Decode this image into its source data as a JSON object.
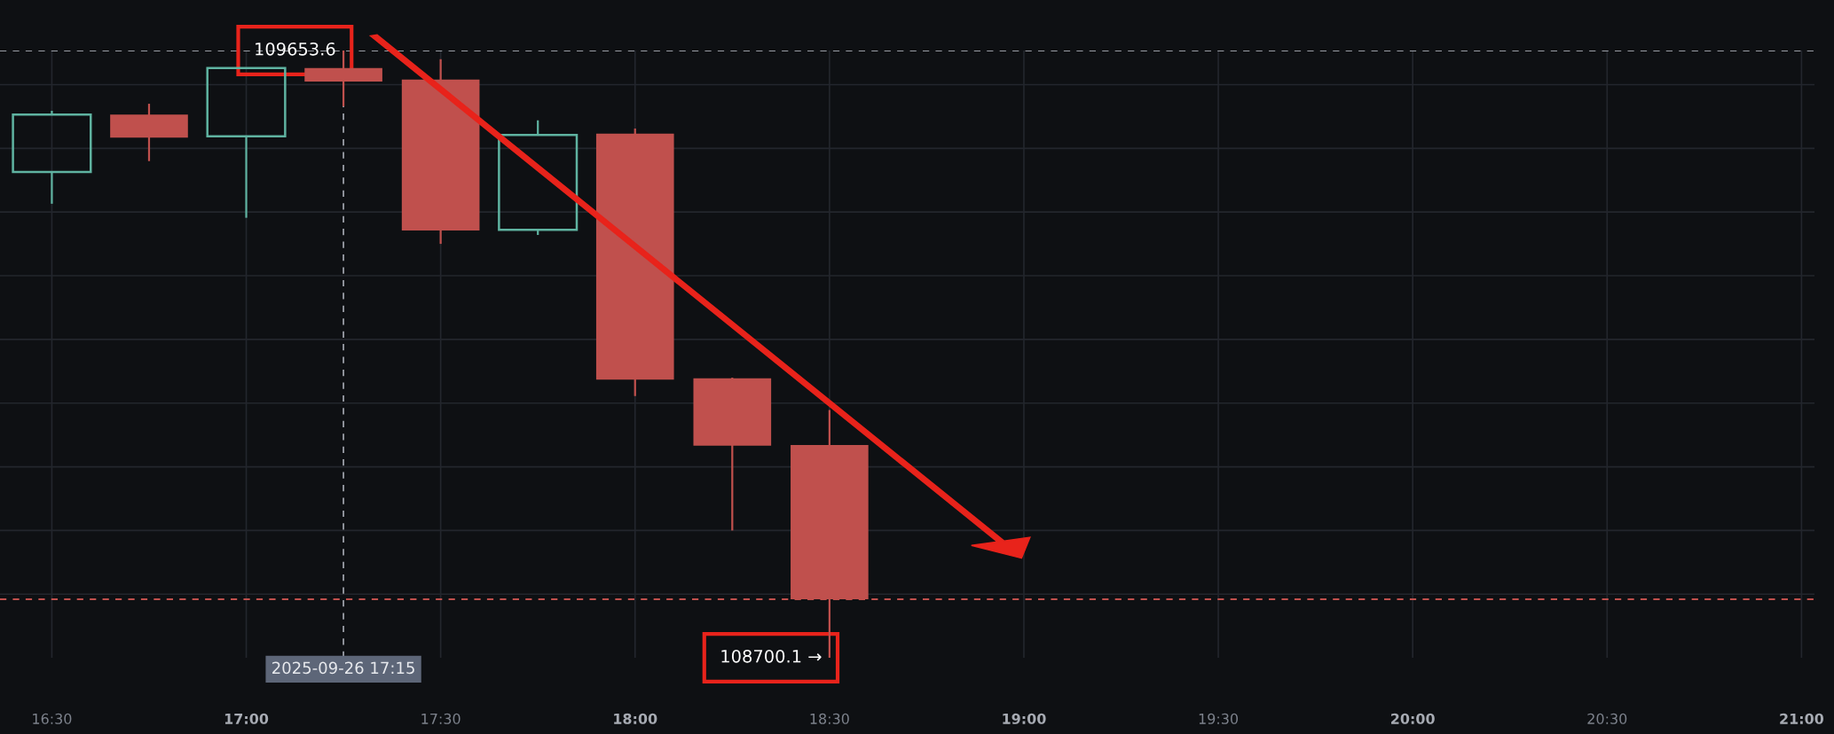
{
  "chart_data": {
    "type": "candlestick",
    "x": [
      "2025-09-26T16:30",
      "2025-09-26T16:45",
      "2025-09-26T17:00",
      "2025-09-26T17:15",
      "2025-09-26T17:30",
      "2025-09-26T17:45",
      "2025-09-26T18:00",
      "2025-09-26T18:15",
      "2025-09-26T18:30"
    ],
    "ohlc": [
      [
        109463,
        109559,
        109413,
        109553
      ],
      [
        109553,
        109570,
        109480,
        109517
      ],
      [
        109519,
        109627,
        109391,
        109626
      ],
      [
        109626,
        109653.6,
        109566,
        109605
      ],
      [
        109608,
        109640,
        109350,
        109371
      ],
      [
        109372,
        109544,
        109364,
        109521
      ],
      [
        109523,
        109531,
        109111,
        109137
      ],
      [
        109139,
        109140,
        108900,
        109033
      ],
      [
        109034,
        109089,
        108700.1,
        108792
      ]
    ],
    "colors": [
      "#5fb3a1",
      "#c0504d",
      "#5fb3a1",
      "#c0504d",
      "#c0504d",
      "#5fb3a1",
      "#c0504d",
      "#c0504d",
      "#c0504d"
    ],
    "xlim": [
      "2025-09-26T16:22",
      "2025-09-26T21:02"
    ],
    "xticks": [
      {
        "value": "2025-09-26T16:30",
        "label": "16:30"
      },
      {
        "value": "2025-09-26T17:00",
        "label": "17:00"
      },
      {
        "value": "2025-09-26T17:30",
        "label": "17:30"
      },
      {
        "value": "2025-09-26T18:00",
        "label": "18:00"
      },
      {
        "value": "2025-09-26T18:30",
        "label": "18:30"
      },
      {
        "value": "2025-09-26T19:00",
        "label": "19:00"
      },
      {
        "value": "2025-09-26T19:30",
        "label": "19:30"
      },
      {
        "value": "2025-09-26T20:00",
        "label": "20:00"
      },
      {
        "value": "2025-09-26T20:30",
        "label": "20:30"
      },
      {
        "value": "2025-09-26T21:00",
        "label": "21:00"
      }
    ],
    "ylim": [
      108700.1,
      109653.6
    ],
    "yticks": [
      {
        "value": 108800,
        "label": null
      },
      {
        "value": 108900,
        "label": null
      },
      {
        "value": 109000,
        "label": null
      },
      {
        "value": 109100,
        "label": null
      },
      {
        "value": 109200,
        "label": null
      },
      {
        "value": 109300,
        "label": null
      },
      {
        "value": 109400,
        "label": null
      },
      {
        "value": 109500,
        "label": null
      },
      {
        "value": 109600,
        "label": null
      }
    ],
    "tick_labels": "x",
    "grid": true,
    "ref_lines": [
      {
        "axis": "y",
        "value": 109653.6,
        "color": "#9a9ea6",
        "line_style": "dashed"
      },
      {
        "axis": "y",
        "value": 108792,
        "color": "#c0504d",
        "line_style": "dashed"
      },
      {
        "axis": "x",
        "value": "2025-09-26T17:15",
        "label": "2025-09-26 17:15",
        "color": "#9a9ea6",
        "line_style": "dashed"
      }
    ],
    "annotations": [
      {
        "text": "109653.6",
        "x": "2025-09-26T17:15",
        "y": 109653.6
      },
      {
        "text": "108700.1 →",
        "x": "2025-09-26T18:30",
        "y": 108700.1
      }
    ]
  }
}
